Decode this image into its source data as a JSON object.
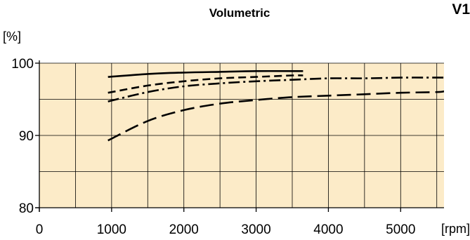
{
  "chart_data": {
    "type": "line",
    "title": "Volumetric",
    "corner_label": "V1",
    "ylabel": "[%]",
    "xlabel": "[rpm]",
    "xlim": [
      0,
      5600
    ],
    "ylim": [
      80,
      100
    ],
    "x_ticks": [
      0,
      1000,
      2000,
      3000,
      4000,
      5000
    ],
    "x_tick_labels": [
      "0",
      "1000",
      "2000",
      "3000",
      "4000",
      "5000"
    ],
    "y_ticks": [
      80,
      90,
      100
    ],
    "y_tick_labels": [
      "80",
      "90",
      "100"
    ],
    "grid": true,
    "x_grid": [
      0,
      500,
      1000,
      1500,
      2000,
      2500,
      3000,
      3500,
      4000,
      4500,
      5000,
      5500
    ],
    "y_grid": [
      80,
      85,
      90,
      95,
      100
    ],
    "plot_background": "#fcebc8",
    "series": [
      {
        "style": "solid",
        "x": [
          950,
          1500,
          2000,
          2500,
          3000,
          3500,
          3650
        ],
        "y": [
          98.1,
          98.5,
          98.7,
          98.8,
          98.9,
          98.9,
          98.9
        ]
      },
      {
        "style": "dashed",
        "x": [
          950,
          1500,
          2000,
          2500,
          3000,
          3500,
          3650
        ],
        "y": [
          95.9,
          96.9,
          97.5,
          97.9,
          98.1,
          98.3,
          98.3
        ]
      },
      {
        "style": "dash-dot",
        "x": [
          950,
          1500,
          2000,
          2500,
          3000,
          3500,
          4000,
          4500,
          5000,
          5500,
          5600
        ],
        "y": [
          94.7,
          96.0,
          96.8,
          97.2,
          97.5,
          97.7,
          97.9,
          97.9,
          98.0,
          98.0,
          98.0
        ]
      },
      {
        "style": "long-dash",
        "x": [
          950,
          1500,
          2000,
          2500,
          3000,
          3500,
          4000,
          4500,
          5000,
          5500,
          5600
        ],
        "y": [
          89.3,
          92.0,
          93.5,
          94.4,
          94.9,
          95.3,
          95.5,
          95.7,
          95.9,
          96.0,
          96.1
        ]
      }
    ]
  }
}
